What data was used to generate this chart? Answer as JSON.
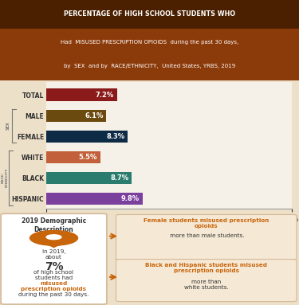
{
  "title_line1": "PERCENTAGE OF HIGH SCHOOL STUDENTS WHO",
  "title_line2a": "Had ",
  "title_line2b": "MISUSED PRESCRIPTION OPIOIDS",
  "title_line2c": " during the past 30 days,",
  "title_line3a": "by ",
  "title_line3b": "SEX",
  "title_line3c": " and by ",
  "title_line3d": "RACE/ETHNICITY",
  "title_line3e": ", United States, YRBS, 2019",
  "categories": [
    "TOTAL",
    "MALE",
    "FEMALE",
    "WHITE",
    "BLACK",
    "HISPANIC"
  ],
  "values": [
    7.2,
    6.1,
    8.3,
    5.5,
    8.7,
    9.8
  ],
  "bar_colors": [
    "#8B1A1A",
    "#6B4A10",
    "#0D2B45",
    "#C1603A",
    "#2A7D6E",
    "#7B3F9E"
  ],
  "xlim": [
    0,
    25
  ],
  "header_dark_bg": "#4A2000",
  "header_orange_bg": "#8B3A0A",
  "chart_bg": "#F5F0E8",
  "bottom_bg": "#EDE0C8",
  "orange": "#C8650A",
  "dark_text": "#333333",
  "white": "#FFFFFF",
  "bracket_color": "#777777",
  "box_bg": "#F5E8D5",
  "box_border": "#D4B896"
}
